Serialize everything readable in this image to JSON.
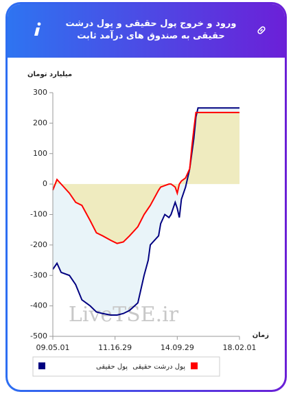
{
  "header": {
    "title": "ورود و خروج پول حقیقی و پول درشت حقیقی به صندوق های درآمد ثابت"
  },
  "chart_data": {
    "type": "area-line",
    "ylabel": "میلیارد تومان",
    "xlabel": "زمان",
    "watermark": "LiveTSE.ir",
    "x": [
      0,
      2,
      4,
      8,
      11,
      14,
      18,
      21,
      24,
      28,
      31,
      34,
      37,
      41,
      44,
      46,
      47,
      51,
      52,
      54,
      56,
      57,
      59,
      60,
      61,
      62,
      64,
      66,
      67,
      68,
      69,
      70,
      90
    ],
    "xlim": [
      0,
      90
    ],
    "xticks": [
      {
        "value": 0,
        "label": "09.05.01"
      },
      {
        "value": 30,
        "label": "11.16.29"
      },
      {
        "value": 60,
        "label": "14.09.29"
      },
      {
        "value": 90,
        "label": "18.02.01"
      }
    ],
    "ylim": [
      -500,
      300
    ],
    "yticks": [
      -500,
      -400,
      -300,
      -200,
      -100,
      0,
      100,
      200,
      300
    ],
    "series": [
      {
        "name": "پول حقیقی",
        "color": "#000080",
        "fill": "#e9f4f9",
        "values": [
          -280,
          -260,
          -290,
          -300,
          -330,
          -380,
          -400,
          -420,
          -425,
          -430,
          -430,
          -425,
          -415,
          -390,
          -300,
          -250,
          -200,
          -170,
          -130,
          -100,
          -110,
          -100,
          -60,
          -80,
          -110,
          -50,
          -10,
          50,
          100,
          150,
          220,
          250,
          250
        ]
      },
      {
        "name": "پول درشت حقیقی",
        "color": "#ff0000",
        "fill": "#efebbf",
        "values": [
          -20,
          15,
          0,
          -30,
          -60,
          -70,
          -120,
          -160,
          -170,
          -185,
          -195,
          -190,
          -170,
          -140,
          -100,
          -80,
          -70,
          -20,
          -10,
          -5,
          0,
          0,
          -10,
          -30,
          0,
          10,
          20,
          50,
          120,
          180,
          235,
          235,
          235
        ]
      }
    ]
  }
}
